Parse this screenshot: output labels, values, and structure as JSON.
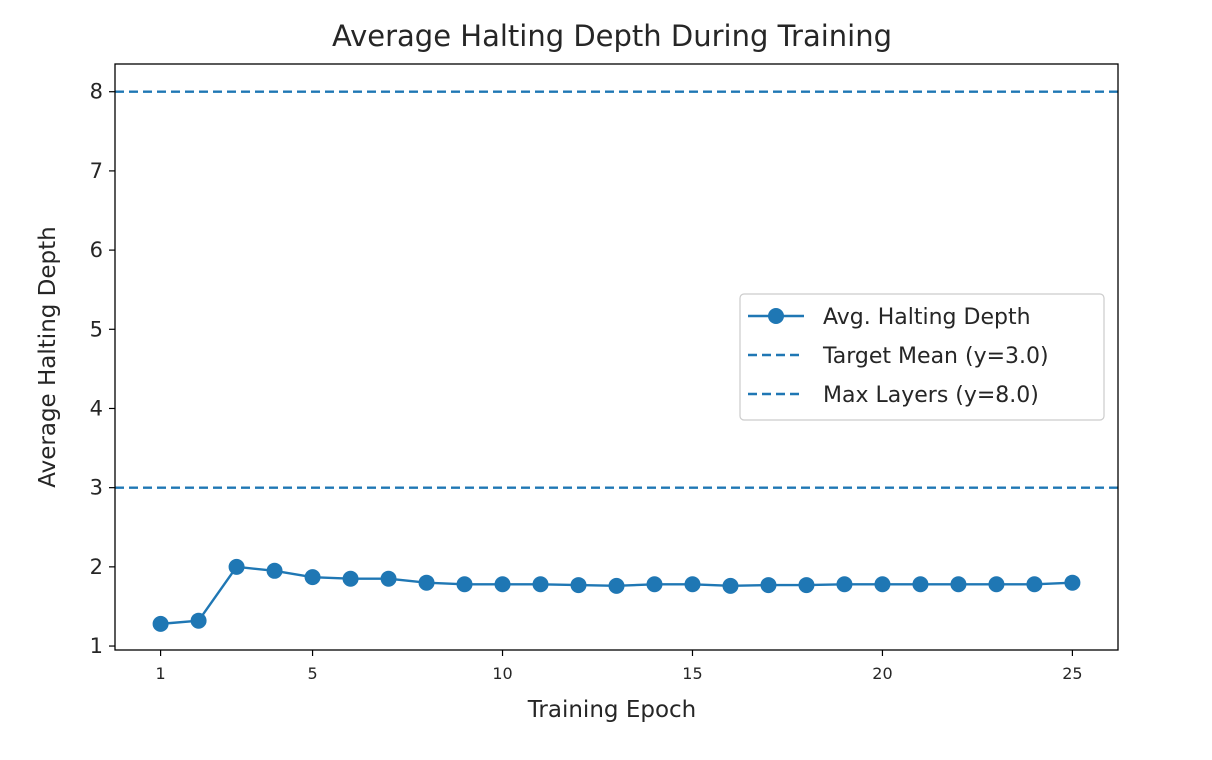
{
  "chart_data": {
    "type": "line",
    "title": "Average Halting Depth During Training",
    "xlabel": "Training Epoch",
    "ylabel": "Average Halting Depth",
    "xlim": [
      -0.2,
      26.2
    ],
    "ylim": [
      0.95,
      8.35
    ],
    "xticks": [
      1,
      5,
      10,
      15,
      20,
      25
    ],
    "yticks": [
      1,
      2,
      3,
      4,
      5,
      6,
      7,
      8
    ],
    "grid": false,
    "legend_position": "center-right",
    "series": [
      {
        "name": "Avg. Halting Depth",
        "color": "#1f77b4",
        "marker": "circle",
        "x": [
          1,
          2,
          3,
          4,
          5,
          6,
          7,
          8,
          9,
          10,
          11,
          12,
          13,
          14,
          15,
          16,
          17,
          18,
          19,
          20,
          21,
          22,
          23,
          24,
          25
        ],
        "y": [
          1.28,
          1.32,
          2.0,
          1.95,
          1.87,
          1.85,
          1.85,
          1.8,
          1.78,
          1.78,
          1.78,
          1.77,
          1.76,
          1.78,
          1.78,
          1.76,
          1.77,
          1.77,
          1.78,
          1.78,
          1.78,
          1.78,
          1.78,
          1.78,
          1.8
        ]
      }
    ],
    "hlines": [
      {
        "name": "Target Mean (y=3.0)",
        "y": 3.0,
        "color": "#1f77b4",
        "style": "dashed"
      },
      {
        "name": "Max Layers (y=8.0)",
        "y": 8.0,
        "color": "#1f77b4",
        "style": "dashed"
      }
    ]
  }
}
